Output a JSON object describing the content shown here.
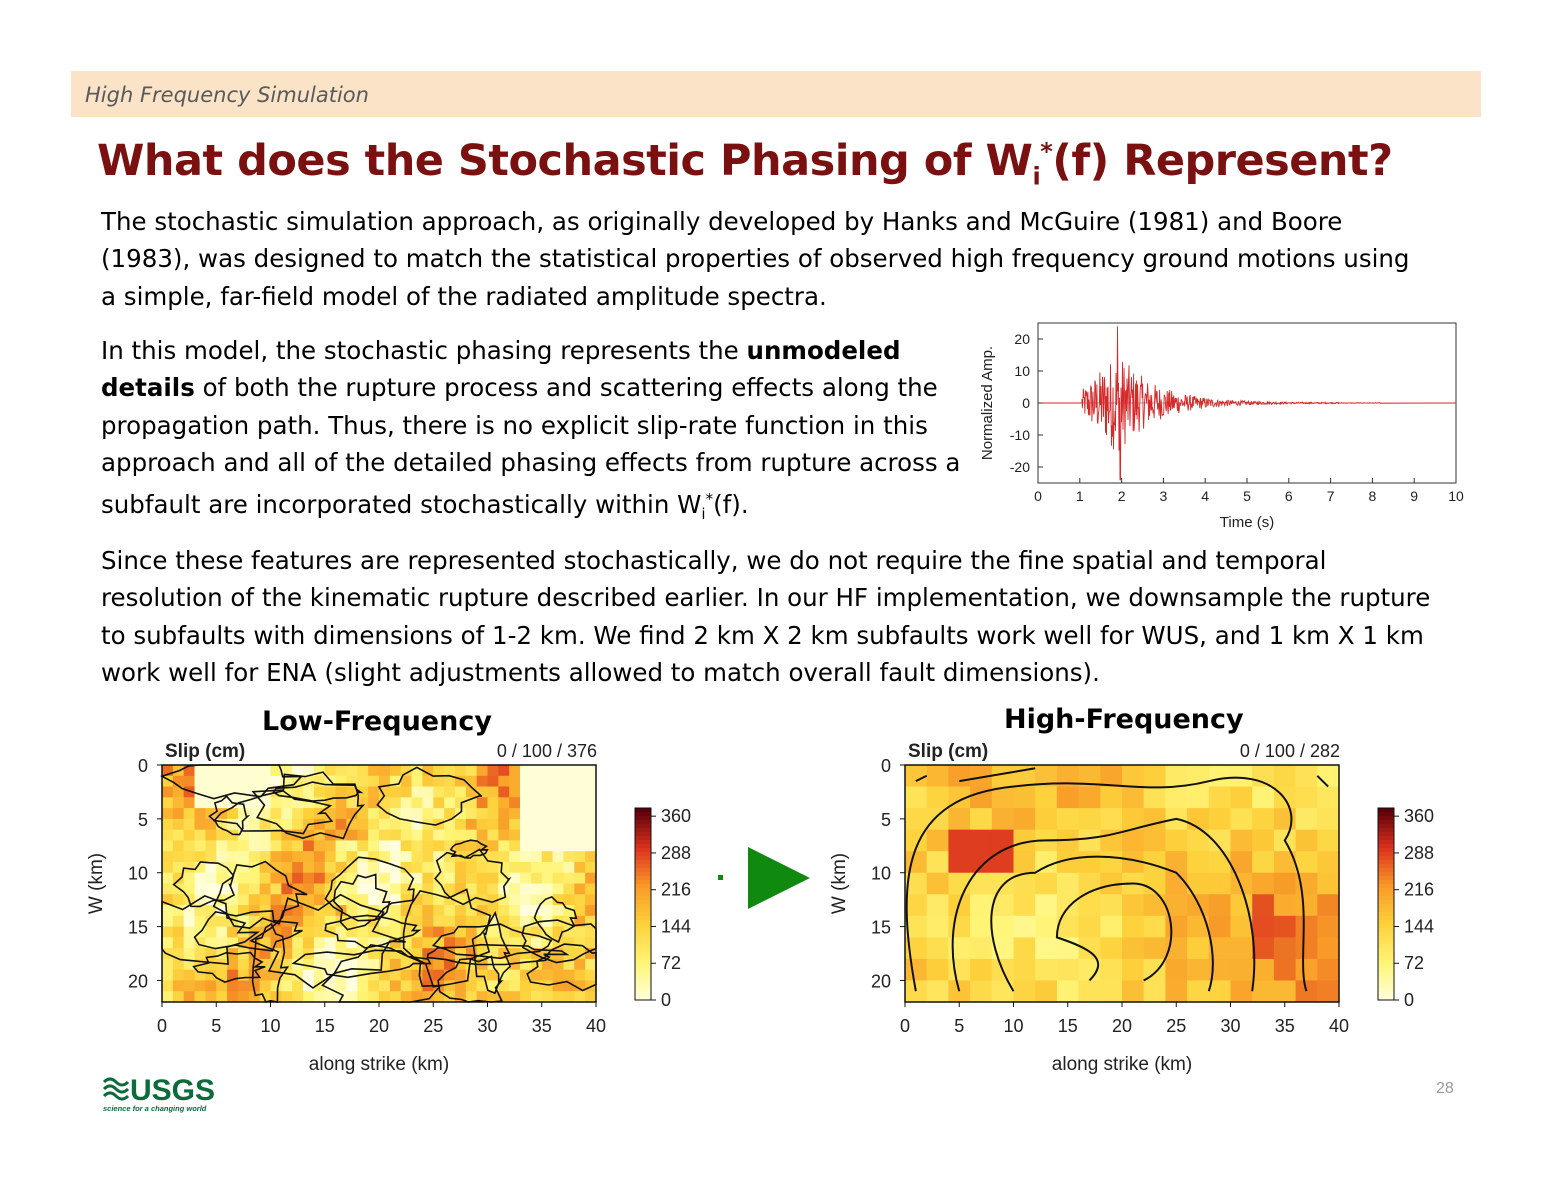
{
  "header": {
    "section": "High Frequency Simulation"
  },
  "title": {
    "pre": "What does the Stochastic Phasing of W",
    "sub": "i",
    "sup": "*",
    "post": "(f) Represent?"
  },
  "paragraphs": {
    "p1": "The stochastic simulation approach, as originally developed by Hanks and McGuire (1981) and Boore (1983), was designed to match the statistical properties of observed high frequency ground motions using a simple, far-field model of the radiated amplitude spectra.",
    "p2_a": "In this model, the stochastic phasing represents the ",
    "p2_bold": "unmodeled details",
    "p2_b": " of both the rupture process and scattering effects along the propagation path.  Thus, there is no explicit slip-rate function in this approach and all of the detailed phasing effects from rupture across a subfault are incorporated stochastically within W",
    "p2_sub": "i",
    "p2_sup": "*",
    "p2_c": "(f).",
    "p3": "Since these features are represented stochastically, we do not require the fine spatial and temporal resolution of the kinematic rupture described earlier.  In our HF implementation, we downsample the rupture to subfaults with dimensions of 1-2 km.  We find 2 km X 2 km subfaults work well for WUS, and 1 km X 1 km work well for ENA (slight adjustments allowed to match overall fault dimensions)."
  },
  "chart_data": [
    {
      "type": "line",
      "xlabel": "Time (s)",
      "ylabel": "Normalized Amp.",
      "xlim": [
        0,
        10
      ],
      "ylim": [
        -25,
        25
      ],
      "xticks": [
        "0",
        "1",
        "2",
        "3",
        "4",
        "5",
        "6",
        "7",
        "8",
        "9",
        "10"
      ],
      "yticks": [
        "20",
        "10",
        "0",
        "-10",
        "-20"
      ],
      "series_color": "#d42a2a",
      "zero_line_color": "#e08a8a",
      "signal": {
        "onset_s": 1.05,
        "peak_s": 1.9,
        "peak_amp": 24,
        "min_amp": -24,
        "decay_end_s": 7.2
      }
    },
    {
      "type": "heatmap",
      "panel_title": "Low-Frequency",
      "label": "Slip (cm)",
      "range_label": "0 / 100 / 376",
      "xlabel": "along strike (km)",
      "ylabel": "W (km)",
      "xticks": [
        "0",
        "5",
        "10",
        "15",
        "20",
        "25",
        "30",
        "35",
        "40"
      ],
      "yticks": [
        "0",
        "5",
        "10",
        "15",
        "20"
      ],
      "colorbar_ticks": [
        "360",
        "288",
        "216",
        "144",
        "72",
        "0"
      ],
      "cols": 40,
      "rows": 22
    },
    {
      "type": "heatmap",
      "panel_title": "High-Frequency",
      "label": "Slip (cm)",
      "range_label": "0 / 100 / 282",
      "xlabel": "along strike (km)",
      "ylabel": "W (km)",
      "xticks": [
        "0",
        "5",
        "10",
        "15",
        "20",
        "25",
        "30",
        "35",
        "40"
      ],
      "yticks": [
        "0",
        "5",
        "10",
        "15",
        "20"
      ],
      "colorbar_ticks": [
        "360",
        "288",
        "216",
        "144",
        "72",
        "0"
      ],
      "cols": 20,
      "rows": 11
    }
  ],
  "footer": {
    "page": "28",
    "logo_text": "USGS",
    "logo_tagline": "science for a changing world"
  },
  "colors": {
    "title": "#7a1010",
    "section_bar": "#fbe3c8",
    "arrow": "#0f8a0f"
  }
}
